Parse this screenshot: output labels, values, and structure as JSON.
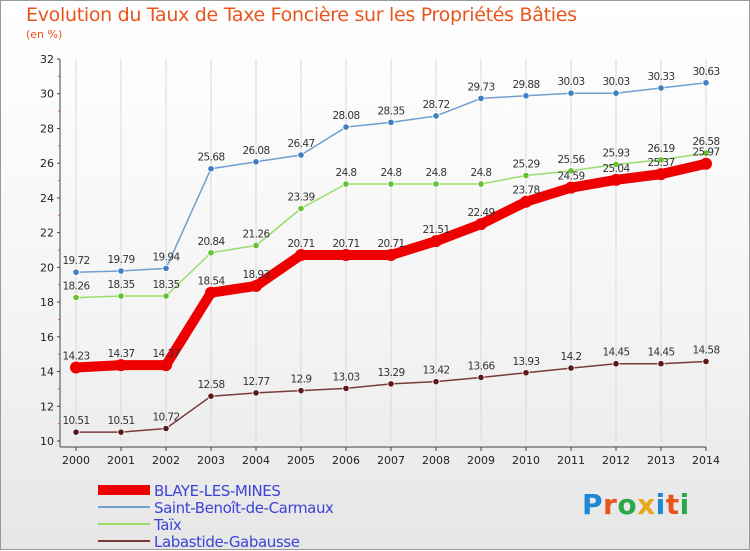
{
  "title": "Evolution du Taux de Taxe Foncière sur les Propriétés Bâties",
  "subtitle": "(en %)",
  "logo": {
    "text": "Proxiti",
    "letter_colors": [
      "#1e88d8",
      "#e8541c",
      "#2aa84a",
      "#e8a81c",
      "#1e88d8",
      "#e8541c",
      "#2aa84a"
    ]
  },
  "chart_data": {
    "type": "line",
    "x": [
      "2000",
      "2001",
      "2002",
      "2003",
      "2004",
      "2005",
      "2006",
      "2007",
      "2008",
      "2009",
      "2010",
      "2011",
      "2012",
      "2013",
      "2014"
    ],
    "ylim": [
      10,
      32
    ],
    "yticks": [
      10,
      12,
      14,
      16,
      18,
      20,
      22,
      24,
      26,
      28,
      30,
      32
    ],
    "grid": "vertical",
    "legend_position": "bottom-left",
    "series": [
      {
        "name": "BLAYE-LES-MINES",
        "color": "#ee0000",
        "width": 10,
        "marker": "#ee0000",
        "values": [
          14.23,
          14.37,
          14.37,
          18.54,
          18.93,
          20.71,
          20.71,
          20.71,
          21.51,
          22.49,
          23.78,
          24.59,
          25.04,
          25.37,
          25.97
        ],
        "labels": [
          "14.23",
          "14.37",
          "14.37",
          "18.54",
          "18.93",
          "20.71",
          "20.71",
          "20.71",
          "21.51",
          "22.49",
          "23.78",
          "24.59",
          "25.04",
          "25.37",
          "25.97"
        ]
      },
      {
        "name": "Saint-Benoît-de-Carmaux",
        "color": "#6f9fcf",
        "width": 1.5,
        "marker": "#3f7ebf",
        "values": [
          19.72,
          19.79,
          19.94,
          25.68,
          26.08,
          26.47,
          28.08,
          28.35,
          28.72,
          29.73,
          29.88,
          30.03,
          30.03,
          30.33,
          30.63
        ],
        "labels": [
          "19.72",
          "19.79",
          "19.94",
          "25.68",
          "26.08",
          "26.47",
          "28.08",
          "28.35",
          "28.72",
          "29.73",
          "29.88",
          "30.03",
          "30.03",
          "30.33",
          "30.63"
        ]
      },
      {
        "name": "Taïx",
        "color": "#99dd66",
        "width": 1.5,
        "marker": "#66c230",
        "values": [
          18.26,
          18.35,
          18.35,
          20.84,
          21.26,
          23.39,
          24.8,
          24.8,
          24.8,
          24.8,
          25.29,
          25.56,
          25.93,
          26.19,
          26.58
        ],
        "labels": [
          "18.26",
          "18.35",
          "18.35",
          "20.84",
          "21.26",
          "23.39",
          "24.8",
          "24.8",
          "24.8",
          "24.8",
          "25.29",
          "25.56",
          "25.93",
          "26.19",
          "26.58"
        ]
      },
      {
        "name": "Labastide-Gabausse",
        "color": "#7a3a3a",
        "width": 1.5,
        "marker": "#5a1818",
        "values": [
          10.51,
          10.51,
          10.72,
          12.58,
          12.77,
          12.9,
          13.03,
          13.29,
          13.42,
          13.66,
          13.93,
          14.2,
          14.45,
          14.45,
          14.58
        ],
        "labels": [
          "10.51",
          "10.51",
          "10.72",
          "12.58",
          "12.77",
          "12.9",
          "13.03",
          "13.29",
          "13.42",
          "13.66",
          "13.93",
          "14.2",
          "14.45",
          "14.45",
          "14.58"
        ]
      }
    ]
  }
}
